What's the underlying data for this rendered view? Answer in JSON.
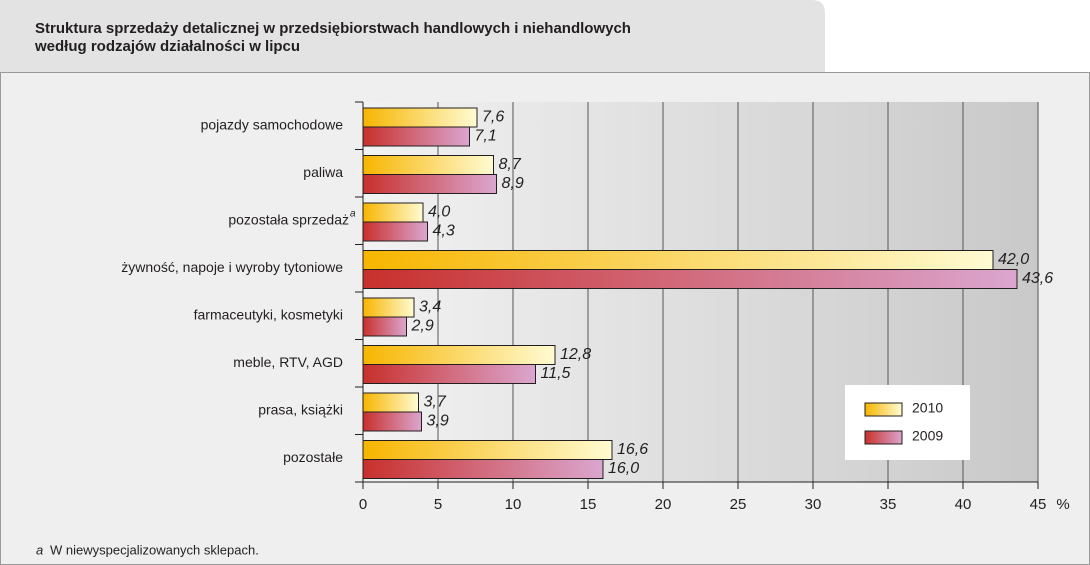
{
  "chart_data": {
    "type": "bar",
    "orientation": "horizontal",
    "title": [
      "Struktura sprzedaży detalicznej w przedsiębiorstwach handlowych i niehandlowych",
      "według rodzajów działalności w lipcu"
    ],
    "categories": [
      "pojazdy samochodowe",
      "paliwa",
      "pozostała sprzedaż",
      "żywność, napoje i wyroby  tytoniowe",
      "farmaceutyki, kosmetyki",
      "meble, RTV, AGD",
      "prasa, książki",
      "pozostałe"
    ],
    "category_marks": [
      null,
      null,
      "a",
      null,
      null,
      null,
      null,
      null
    ],
    "series": [
      {
        "name": "2010",
        "color": "#f7b500",
        "color_end": "#fffbd2",
        "values": [
          7.6,
          8.7,
          4.0,
          42.0,
          3.4,
          12.8,
          3.7,
          16.6
        ],
        "value_labels": [
          "7,6",
          "8,7",
          "4,0",
          "42,0",
          "3,4",
          "12,8",
          "3,7",
          "16,6"
        ]
      },
      {
        "name": "2009",
        "color": "#c8302c",
        "color_end": "#dba6cf",
        "values": [
          7.1,
          8.9,
          4.3,
          43.6,
          2.9,
          11.5,
          3.9,
          16.0
        ],
        "value_labels": [
          "7,1",
          "8,9",
          "4,3",
          "43,6",
          "2,9",
          "11,5",
          "3,9",
          "16,0"
        ]
      }
    ],
    "xlim": [
      0,
      45
    ],
    "xticks": [
      0,
      5,
      10,
      15,
      20,
      25,
      30,
      35,
      40,
      45
    ],
    "x_unit": "%",
    "grid": true,
    "legend": "lower right",
    "footnote": {
      "marker": "a",
      "text": "W niewyspecjalizowanych sklepach."
    }
  }
}
